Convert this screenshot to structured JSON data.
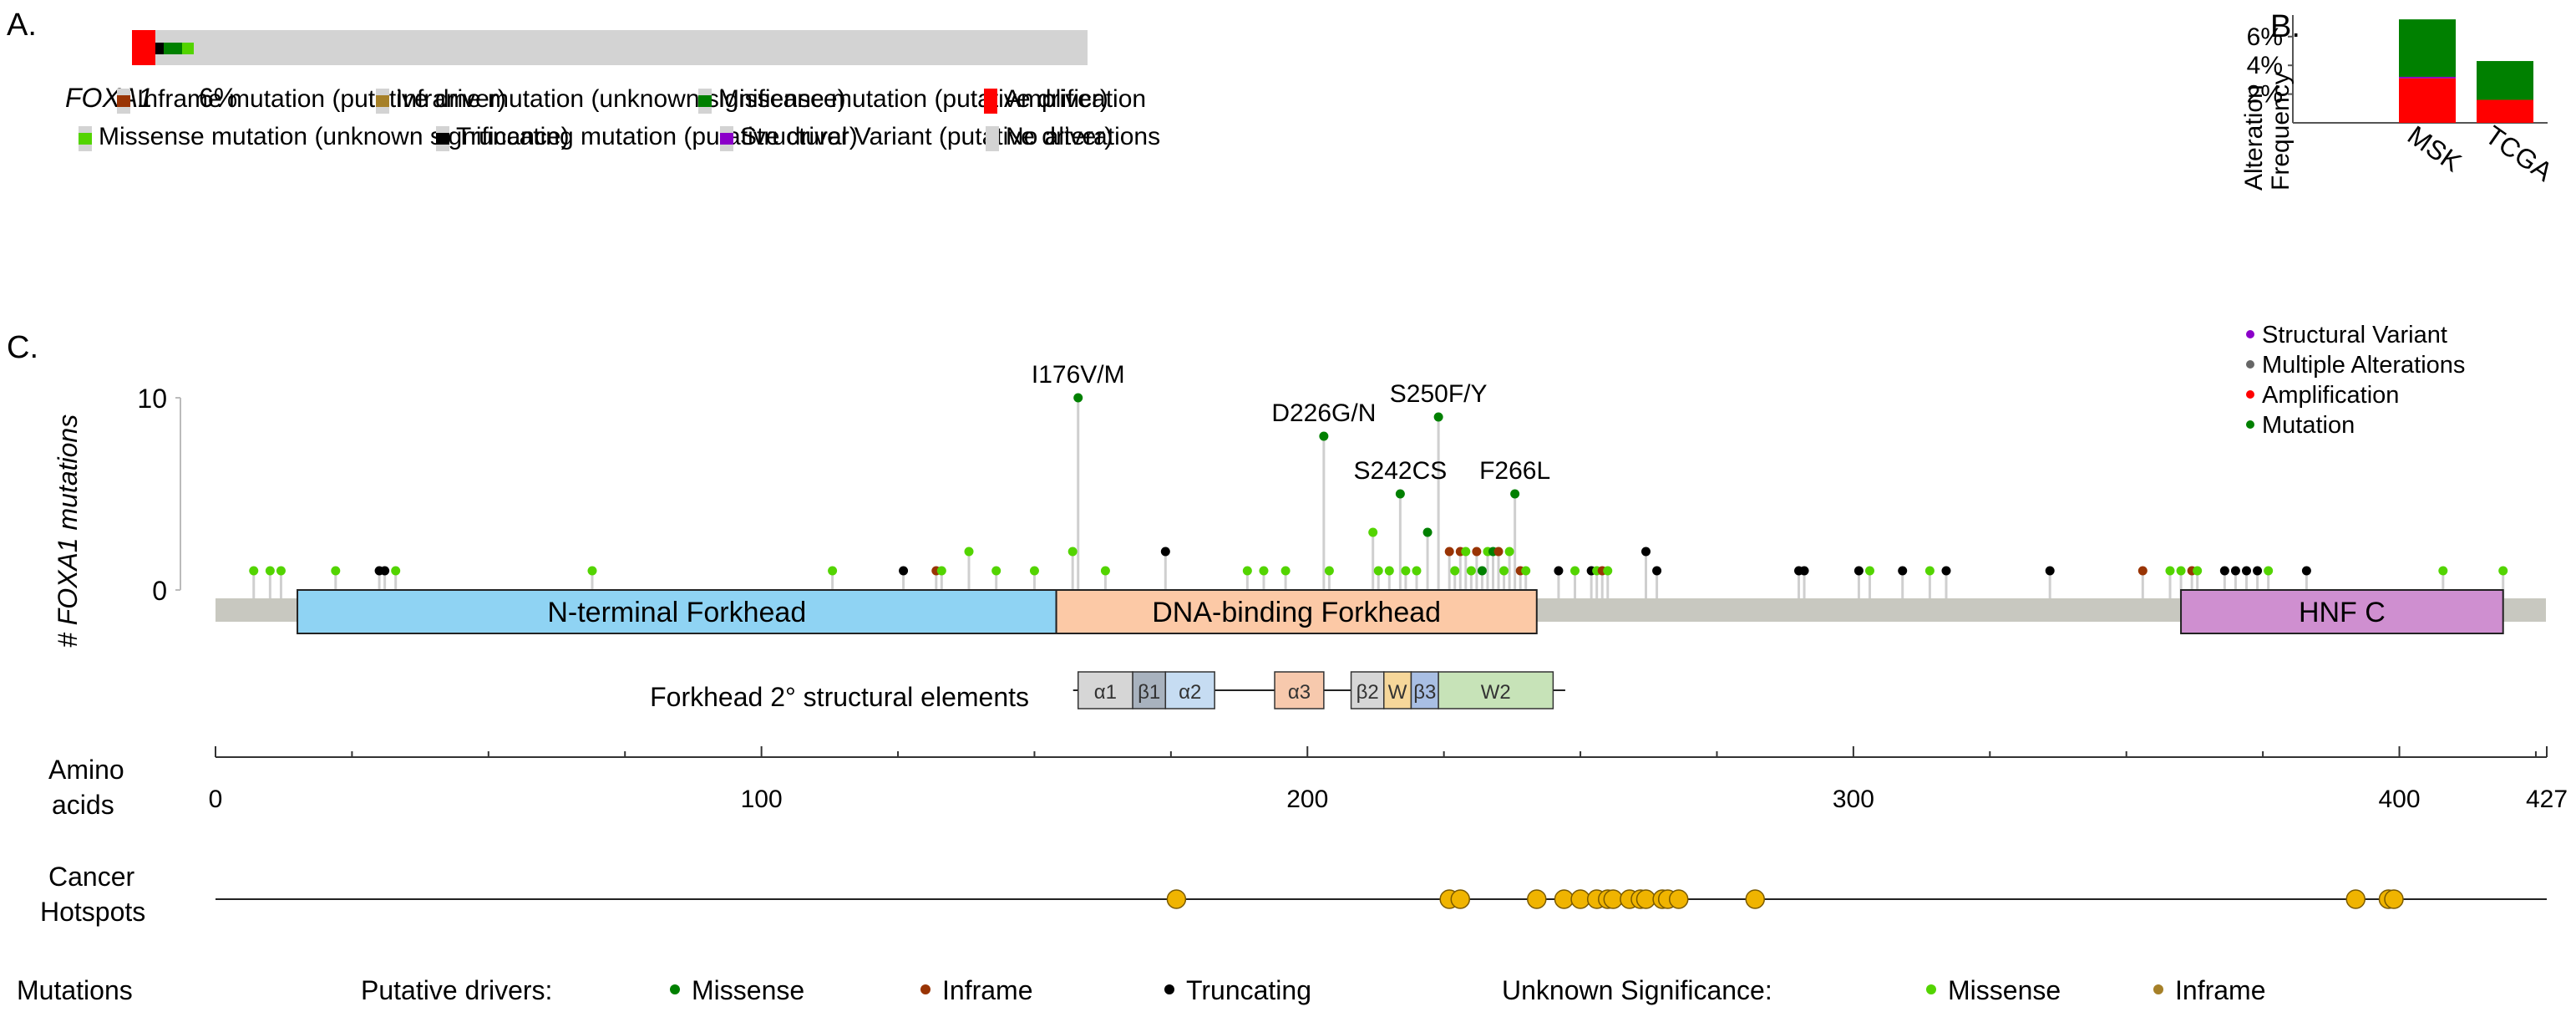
{
  "panel_labels": {
    "a": "A.",
    "b": "B.",
    "c": "C."
  },
  "colors": {
    "inframe_driver": "#993404",
    "inframe_unknown": "#a68028",
    "missense_driver": "#008000",
    "missense_unknown": "#53d400",
    "truncating_driver": "#000000",
    "structural_variant": "#8b00c9",
    "amplification": "#ff0000",
    "no_alteration": "#d3d3d3",
    "multiple": "#666666",
    "hotspot": "#f0b400",
    "nterm_domain": "#8fd3f3",
    "dbd_domain": "#fcc9a6",
    "hnf_domain": "#cf8fd0"
  },
  "oncoprint": {
    "gene": "FOXA1",
    "percent": "6%",
    "legend": [
      {
        "label": "Inframe mutation (putative driver)",
        "color": "inframe_driver"
      },
      {
        "label": "Inframe mutation (unknown significance)",
        "color": "inframe_unknown"
      },
      {
        "label": "Missense mutation (putative driver)",
        "color": "missense_driver"
      },
      {
        "label": "Amplification",
        "color": "amplification"
      },
      {
        "label": "Missense mutation (unknown significance)",
        "color": "missense_unknown"
      },
      {
        "label": "Truncating mutation (putative driver)",
        "color": "truncating_driver"
      },
      {
        "label": "Structural Variant (putative driver)",
        "color": "structural_variant"
      },
      {
        "label": "No alterations",
        "color": "no_alteration"
      }
    ]
  },
  "chart_data": [
    {
      "type": "bar",
      "title": "",
      "xlabel": "",
      "ylabel": "Alteration Frequency",
      "categories": [
        "MSK",
        "TCGA"
      ],
      "series": [
        {
          "name": "Amplification",
          "values": [
            3.1,
            1.6
          ]
        },
        {
          "name": "Structural Variant",
          "values": [
            0.1,
            0.0
          ]
        },
        {
          "name": "Mutation",
          "values": [
            4.0,
            2.7
          ]
        }
      ],
      "stacked": true,
      "ylim": [
        0,
        7.5
      ],
      "yticks": [
        "2%",
        "4%",
        "6%"
      ],
      "ytick_values": [
        2,
        4,
        6
      ]
    },
    {
      "type": "scatter",
      "title": "",
      "xlabel": "",
      "ylabel": "# FOXA1 mutations",
      "ylim": [
        0,
        10
      ],
      "xlim": [
        0,
        427
      ],
      "yticks": [
        "0",
        "10"
      ],
      "legend": [
        "Structural Variant",
        "Multiple Alterations",
        "Amplification",
        "Mutation"
      ],
      "legend_placement": "top-right",
      "lollipops": [
        {
          "x": 7,
          "y": 1,
          "c": "missense_unknown"
        },
        {
          "x": 10,
          "y": 1,
          "c": "missense_unknown"
        },
        {
          "x": 12,
          "y": 1,
          "c": "missense_unknown"
        },
        {
          "x": 22,
          "y": 1,
          "c": "missense_unknown"
        },
        {
          "x": 30,
          "y": 1,
          "c": "truncating_driver"
        },
        {
          "x": 31,
          "y": 1,
          "c": "truncating_driver"
        },
        {
          "x": 33,
          "y": 1,
          "c": "missense_unknown"
        },
        {
          "x": 69,
          "y": 1,
          "c": "missense_unknown"
        },
        {
          "x": 113,
          "y": 1,
          "c": "missense_unknown"
        },
        {
          "x": 126,
          "y": 1,
          "c": "truncating_driver"
        },
        {
          "x": 132,
          "y": 1,
          "c": "inframe_driver"
        },
        {
          "x": 133,
          "y": 1,
          "c": "missense_unknown"
        },
        {
          "x": 138,
          "y": 2,
          "c": "missense_unknown"
        },
        {
          "x": 143,
          "y": 1,
          "c": "missense_unknown"
        },
        {
          "x": 150,
          "y": 1,
          "c": "missense_unknown"
        },
        {
          "x": 157,
          "y": 2,
          "c": "missense_unknown"
        },
        {
          "x": 158,
          "y": 10,
          "c": "missense_driver",
          "label": "I176V/M"
        },
        {
          "x": 163,
          "y": 1,
          "c": "missense_unknown"
        },
        {
          "x": 174,
          "y": 2,
          "c": "truncating_driver"
        },
        {
          "x": 189,
          "y": 1,
          "c": "missense_unknown"
        },
        {
          "x": 192,
          "y": 1,
          "c": "missense_unknown"
        },
        {
          "x": 196,
          "y": 1,
          "c": "missense_unknown"
        },
        {
          "x": 203,
          "y": 8,
          "c": "missense_driver",
          "label": "D226G/N"
        },
        {
          "x": 204,
          "y": 1,
          "c": "missense_unknown"
        },
        {
          "x": 212,
          "y": 3,
          "c": "missense_unknown"
        },
        {
          "x": 213,
          "y": 1,
          "c": "missense_unknown"
        },
        {
          "x": 215,
          "y": 1,
          "c": "missense_unknown"
        },
        {
          "x": 217,
          "y": 5,
          "c": "missense_driver",
          "label": "S242CS"
        },
        {
          "x": 218,
          "y": 1,
          "c": "missense_unknown"
        },
        {
          "x": 220,
          "y": 1,
          "c": "missense_unknown"
        },
        {
          "x": 222,
          "y": 3,
          "c": "missense_driver"
        },
        {
          "x": 224,
          "y": 9,
          "c": "missense_driver",
          "label": "S250F/Y"
        },
        {
          "x": 226,
          "y": 2,
          "c": "inframe_driver"
        },
        {
          "x": 227,
          "y": 1,
          "c": "missense_unknown"
        },
        {
          "x": 228,
          "y": 2,
          "c": "inframe_driver"
        },
        {
          "x": 229,
          "y": 2,
          "c": "missense_unknown"
        },
        {
          "x": 230,
          "y": 1,
          "c": "missense_unknown"
        },
        {
          "x": 231,
          "y": 2,
          "c": "inframe_driver"
        },
        {
          "x": 232,
          "y": 1,
          "c": "missense_driver"
        },
        {
          "x": 233,
          "y": 2,
          "c": "missense_unknown"
        },
        {
          "x": 234,
          "y": 2,
          "c": "missense_driver"
        },
        {
          "x": 235,
          "y": 2,
          "c": "inframe_driver"
        },
        {
          "x": 236,
          "y": 1,
          "c": "missense_unknown"
        },
        {
          "x": 237,
          "y": 2,
          "c": "missense_unknown"
        },
        {
          "x": 238,
          "y": 5,
          "c": "missense_driver",
          "label": "F266L"
        },
        {
          "x": 239,
          "y": 1,
          "c": "inframe_driver"
        },
        {
          "x": 240,
          "y": 1,
          "c": "missense_unknown"
        },
        {
          "x": 246,
          "y": 1,
          "c": "truncating_driver"
        },
        {
          "x": 249,
          "y": 1,
          "c": "missense_unknown"
        },
        {
          "x": 252,
          "y": 1,
          "c": "truncating_driver"
        },
        {
          "x": 253,
          "y": 1,
          "c": "missense_unknown"
        },
        {
          "x": 254,
          "y": 1,
          "c": "inframe_driver"
        },
        {
          "x": 255,
          "y": 1,
          "c": "missense_unknown"
        },
        {
          "x": 262,
          "y": 2,
          "c": "truncating_driver"
        },
        {
          "x": 264,
          "y": 1,
          "c": "truncating_driver"
        },
        {
          "x": 290,
          "y": 1,
          "c": "truncating_driver"
        },
        {
          "x": 291,
          "y": 1,
          "c": "truncating_driver"
        },
        {
          "x": 301,
          "y": 1,
          "c": "truncating_driver"
        },
        {
          "x": 303,
          "y": 1,
          "c": "missense_unknown"
        },
        {
          "x": 309,
          "y": 1,
          "c": "truncating_driver"
        },
        {
          "x": 314,
          "y": 1,
          "c": "missense_unknown"
        },
        {
          "x": 317,
          "y": 1,
          "c": "truncating_driver"
        },
        {
          "x": 336,
          "y": 1,
          "c": "truncating_driver"
        },
        {
          "x": 353,
          "y": 1,
          "c": "inframe_driver"
        },
        {
          "x": 358,
          "y": 1,
          "c": "missense_unknown"
        },
        {
          "x": 360,
          "y": 1,
          "c": "missense_unknown"
        },
        {
          "x": 362,
          "y": 1,
          "c": "inframe_driver"
        },
        {
          "x": 363,
          "y": 1,
          "c": "missense_unknown"
        },
        {
          "x": 368,
          "y": 1,
          "c": "truncating_driver"
        },
        {
          "x": 370,
          "y": 1,
          "c": "truncating_driver"
        },
        {
          "x": 372,
          "y": 1,
          "c": "truncating_driver"
        },
        {
          "x": 374,
          "y": 1,
          "c": "truncating_driver"
        },
        {
          "x": 376,
          "y": 1,
          "c": "missense_unknown"
        },
        {
          "x": 383,
          "y": 1,
          "c": "truncating_driver"
        },
        {
          "x": 408,
          "y": 1,
          "c": "missense_unknown"
        },
        {
          "x": 419,
          "y": 1,
          "c": "missense_unknown"
        }
      ],
      "domains": [
        {
          "label": "N-terminal Forkhead",
          "start": 15,
          "end": 154,
          "color": "nterm_domain"
        },
        {
          "label": "DNA-binding Forkhead",
          "start": 154,
          "end": 242,
          "color": "dbd_domain"
        },
        {
          "label": "HNF C",
          "start": 360,
          "end": 419,
          "color": "hnf_domain"
        }
      ]
    }
  ],
  "structural": {
    "label": "Forkhead 2° structural elements",
    "range": [
      158,
      246
    ],
    "elements": [
      {
        "label": "α1",
        "start": 158,
        "end": 168,
        "fill": "#d6d6d6"
      },
      {
        "label": "β1",
        "start": 168,
        "end": 174,
        "fill": "#a8b2be"
      },
      {
        "label": "α2",
        "start": 174,
        "end": 183,
        "fill": "#c6dcf2"
      },
      {
        "label": "α3",
        "start": 194,
        "end": 203,
        "fill": "#f7c9ad"
      },
      {
        "label": "β2",
        "start": 208,
        "end": 214,
        "fill": "#d6d6d6"
      },
      {
        "label": "W",
        "start": 214,
        "end": 219,
        "fill": "#f6d79a"
      },
      {
        "label": "β3",
        "start": 219,
        "end": 224,
        "fill": "#a9bfe4"
      },
      {
        "label": "W2",
        "start": 224,
        "end": 245,
        "fill": "#c7e3b8"
      }
    ]
  },
  "amino_axis": {
    "label_line1": "Amino",
    "label_line2": "acids",
    "ticks": [
      "0",
      "100",
      "200",
      "300",
      "400",
      "427"
    ],
    "tick_values": [
      0,
      100,
      200,
      300,
      400,
      427
    ]
  },
  "hotspots": {
    "label_line1": "Cancer",
    "label_line2": "Hotspots",
    "positions": [
      176,
      226,
      228,
      242,
      247,
      250,
      253,
      255,
      256,
      259,
      261,
      262,
      265,
      266,
      268,
      282,
      392,
      398,
      399
    ]
  },
  "mutation_legend": {
    "row_label": "Mutations",
    "drivers_label": "Putative drivers:",
    "unknown_label": "Unknown Significance:",
    "drivers": [
      {
        "label": "Missense",
        "color": "missense_driver"
      },
      {
        "label": "Inframe",
        "color": "inframe_driver"
      },
      {
        "label": "Truncating",
        "color": "truncating_driver"
      }
    ],
    "unknown": [
      {
        "label": "Missense",
        "color": "missense_unknown"
      },
      {
        "label": "Inframe",
        "color": "inframe_unknown"
      }
    ]
  }
}
